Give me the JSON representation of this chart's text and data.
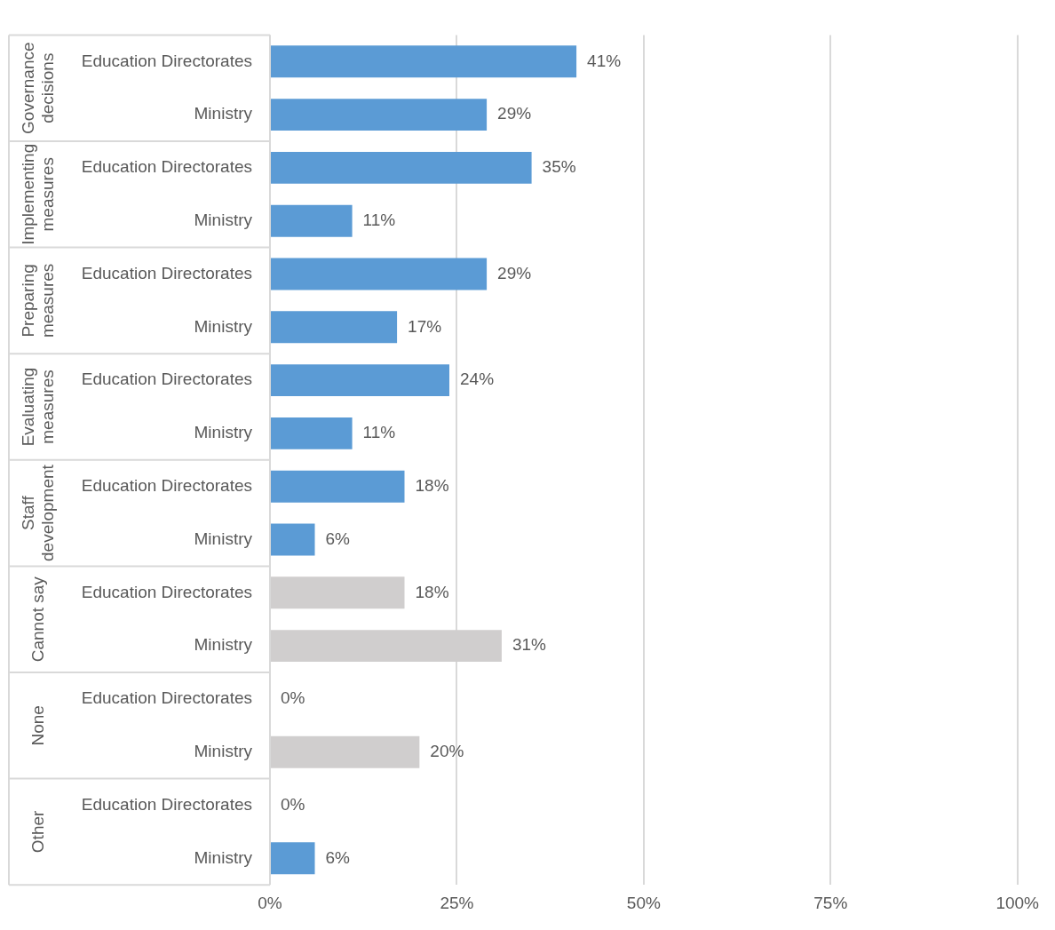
{
  "chart_data": {
    "type": "bar",
    "orientation": "horizontal",
    "categories": [
      "Education Directorates",
      "Ministry",
      "Education Directorates",
      "Ministry",
      "Education Directorates",
      "Ministry",
      "Education Directorates",
      "Ministry",
      "Education Directorates",
      "Ministry",
      "Education Directorates",
      "Ministry",
      "Education Directorates",
      "Ministry",
      "Education Directorates",
      "Ministry"
    ],
    "values": [
      41,
      29,
      35,
      11,
      29,
      17,
      24,
      11,
      18,
      6,
      18,
      31,
      0,
      20,
      0,
      6
    ],
    "colors": [
      "#5b9bd5",
      "#5b9bd5",
      "#5b9bd5",
      "#5b9bd5",
      "#5b9bd5",
      "#5b9bd5",
      "#5b9bd5",
      "#5b9bd5",
      "#5b9bd5",
      "#5b9bd5",
      "#d0cece",
      "#d0cece",
      "#d0cece",
      "#d0cece",
      "#5b9bd5",
      "#5b9bd5"
    ],
    "value_labels": [
      "41%",
      "29%",
      "35%",
      "11%",
      "29%",
      "17%",
      "24%",
      "11%",
      "18%",
      "6%",
      "18%",
      "31%",
      "0%",
      "20%",
      "0%",
      "6%"
    ],
    "annotations": [
      "Governance decisions",
      "Implementing measures",
      "Preparing measures",
      "Evaluating measures",
      "Staff development",
      "Cannot say",
      "None",
      "Other"
    ],
    "xlim": [
      0,
      100
    ],
    "xticks": [
      {
        "value": 0,
        "label": "0%"
      },
      {
        "value": 25,
        "label": "25%"
      },
      {
        "value": 50,
        "label": "50%"
      },
      {
        "value": 75,
        "label": "75%"
      },
      {
        "value": 100,
        "label": "100%"
      }
    ],
    "grid": "x",
    "legend": false
  }
}
